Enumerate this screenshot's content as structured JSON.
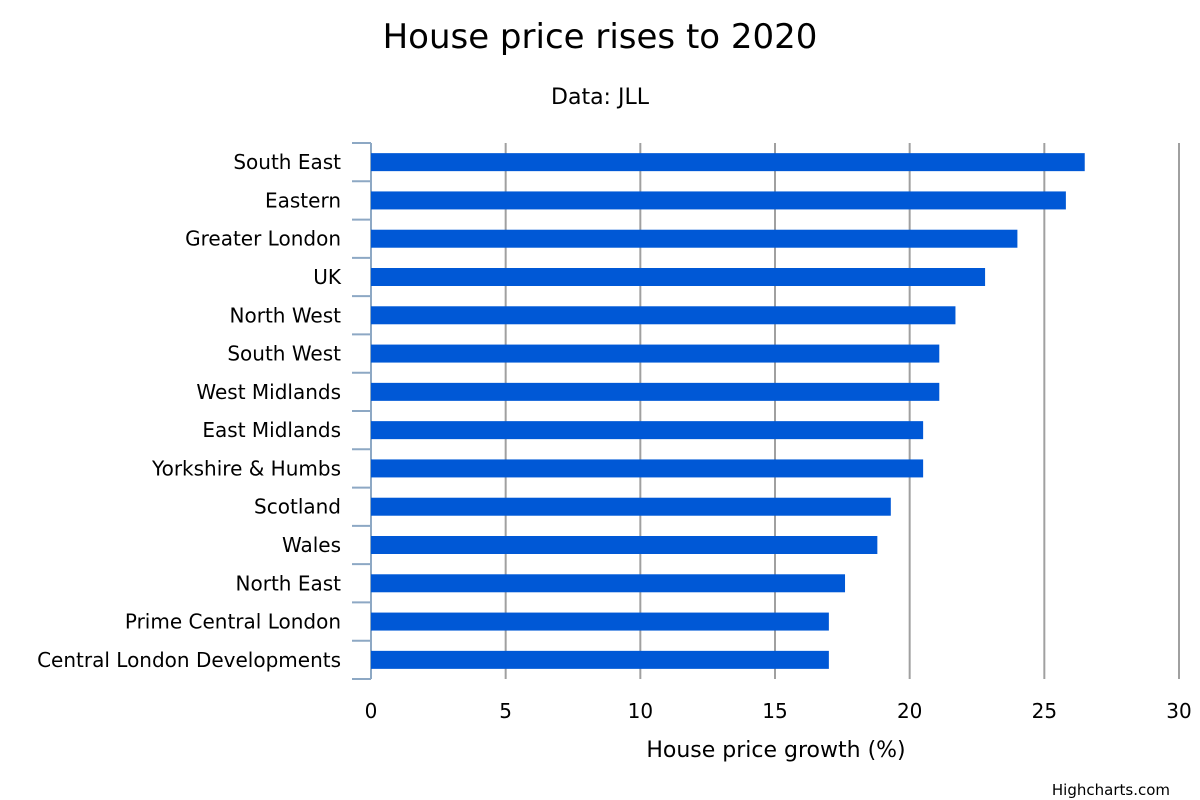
{
  "chart_data": {
    "type": "bar",
    "orientation": "horizontal",
    "title": "House price rises to 2020",
    "subtitle": "Data: JLL",
    "xlabel": "House price growth (%)",
    "categories": [
      "South East",
      "Eastern",
      "Greater London",
      "UK",
      "North West",
      "South West",
      "West Midlands",
      "East Midlands",
      "Yorkshire & Humbs",
      "Scotland",
      "Wales",
      "North East",
      "Prime Central London",
      "Central London Developments"
    ],
    "values": [
      26.5,
      25.8,
      24.0,
      22.8,
      21.7,
      21.1,
      21.1,
      20.5,
      20.5,
      19.3,
      18.8,
      17.6,
      17.0,
      17.0
    ],
    "xlim": [
      0,
      30
    ],
    "ticks": [
      "0",
      "5",
      "10",
      "15",
      "20",
      "25",
      "30"
    ],
    "grid": true,
    "legend": "none",
    "bar_color": "#0058d6",
    "credits": "Highcharts.com"
  }
}
